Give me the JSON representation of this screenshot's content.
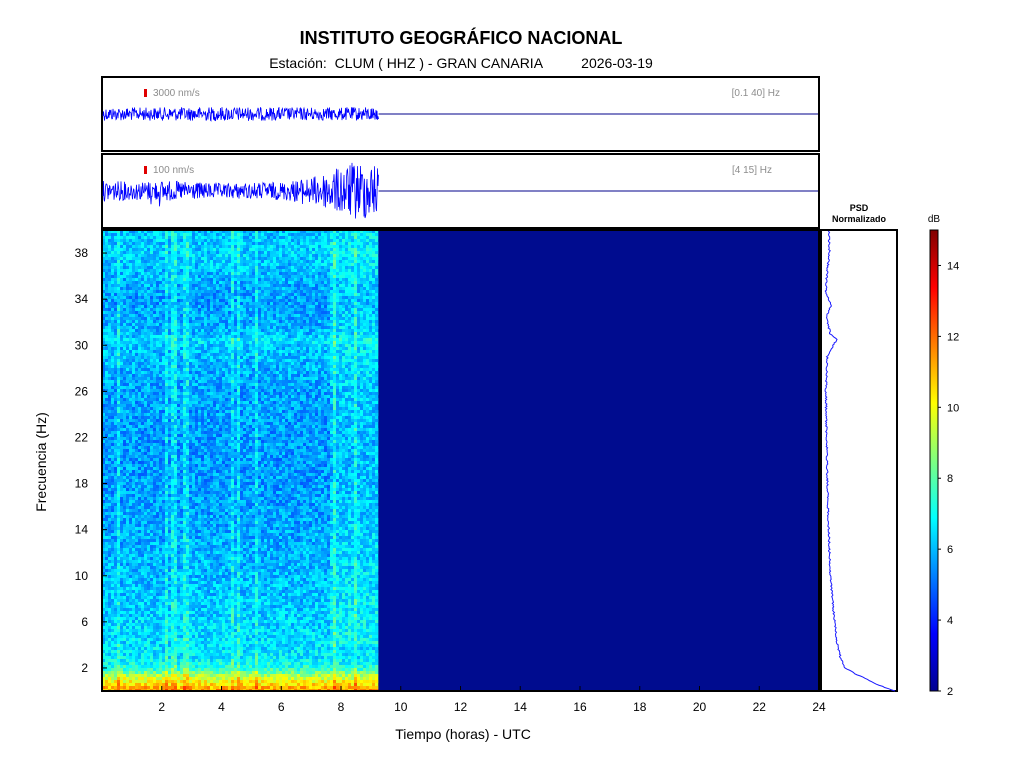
{
  "header": {
    "title": "INSTITUTO GEOGRÁFICO NACIONAL",
    "station_label": "Estación:",
    "station": "CLUM ( HHZ ) - GRAN CANARIA",
    "date": "2026-03-19"
  },
  "colors": {
    "trace": "#0000ff",
    "spectrogram_empty": "#000c8f",
    "scale_marker": "#e00000",
    "psd_line": "#1a1aff"
  },
  "chart_data": [
    {
      "type": "line",
      "name": "trace-broadband",
      "scale_label": "3000 nm/s",
      "filter_label": "[0.1 40] Hz",
      "x_range": [
        0,
        24
      ],
      "data_until_hour": 9.25,
      "amplitude_profile": [
        {
          "hour": 0.0,
          "amp": 0.55
        },
        {
          "hour": 2.0,
          "amp": 0.55
        },
        {
          "hour": 4.0,
          "amp": 0.6
        },
        {
          "hour": 6.0,
          "amp": 0.55
        },
        {
          "hour": 8.0,
          "amp": 0.55
        },
        {
          "hour": 9.25,
          "amp": 0.6
        }
      ]
    },
    {
      "type": "line",
      "name": "trace-filtered",
      "scale_label": "100 nm/s",
      "filter_label": "[4 15] Hz",
      "x_range": [
        0,
        24
      ],
      "data_until_hour": 9.25,
      "amplitude_profile": [
        {
          "hour": 0.0,
          "amp": 0.35
        },
        {
          "hour": 1.0,
          "amp": 0.3
        },
        {
          "hour": 2.0,
          "amp": 0.35
        },
        {
          "hour": 4.0,
          "amp": 0.25
        },
        {
          "hour": 6.0,
          "amp": 0.3
        },
        {
          "hour": 7.0,
          "amp": 0.45
        },
        {
          "hour": 8.0,
          "amp": 0.8
        },
        {
          "hour": 8.5,
          "amp": 1.0
        },
        {
          "hour": 9.25,
          "amp": 0.9
        }
      ],
      "spikes": [
        {
          "hour": 0.6,
          "amp": 0.55
        },
        {
          "hour": 1.6,
          "amp": 0.7
        },
        {
          "hour": 1.9,
          "amp": 0.6
        },
        {
          "hour": 3.1,
          "amp": 0.45
        },
        {
          "hour": 4.4,
          "amp": 0.5
        },
        {
          "hour": 5.4,
          "amp": 0.45
        },
        {
          "hour": 6.7,
          "amp": 0.5
        },
        {
          "hour": 8.1,
          "amp": 0.9
        }
      ]
    },
    {
      "type": "heatmap",
      "name": "spectrogram",
      "xlabel": "Tiempo (horas) - UTC",
      "ylabel": "Frecuencia  (Hz)",
      "xlim": [
        0,
        24
      ],
      "ylim": [
        0,
        40
      ],
      "xticks": [
        2,
        4,
        6,
        8,
        10,
        12,
        14,
        16,
        18,
        20,
        22,
        24
      ],
      "yticks": [
        2,
        6,
        10,
        14,
        18,
        22,
        26,
        30,
        34,
        38
      ],
      "data_until_hour": 9.25,
      "colorbar": {
        "label": "dB",
        "min": 2,
        "max": 15,
        "ticks": [
          2,
          4,
          6,
          8,
          10,
          12,
          14
        ],
        "colormap": "jet"
      },
      "level_profile_by_frequency": [
        {
          "hz": 0.0,
          "db": 11.5
        },
        {
          "hz": 0.5,
          "db": 11.0
        },
        {
          "hz": 1.0,
          "db": 10.0
        },
        {
          "hz": 1.5,
          "db": 9.0
        },
        {
          "hz": 2.0,
          "db": 7.5
        },
        {
          "hz": 3.0,
          "db": 6.6
        },
        {
          "hz": 6.0,
          "db": 6.3
        },
        {
          "hz": 10.0,
          "db": 6.0
        },
        {
          "hz": 14.0,
          "db": 5.8
        },
        {
          "hz": 18.0,
          "db": 5.6
        },
        {
          "hz": 22.0,
          "db": 5.6
        },
        {
          "hz": 26.0,
          "db": 5.7
        },
        {
          "hz": 30.0,
          "db": 6.1
        },
        {
          "hz": 30.5,
          "db": 6.6
        },
        {
          "hz": 31.0,
          "db": 6.0
        },
        {
          "hz": 34.0,
          "db": 5.6
        },
        {
          "hz": 38.0,
          "db": 6.3
        },
        {
          "hz": 40.0,
          "db": 6.1
        }
      ]
    },
    {
      "type": "line",
      "name": "psd-normalizado",
      "title": "PSD\nNormalizado",
      "ylim": [
        0,
        40
      ],
      "x_range": [
        0,
        1
      ],
      "points": [
        {
          "hz": 0.0,
          "v": 1.0
        },
        {
          "hz": 0.5,
          "v": 0.78
        },
        {
          "hz": 1.0,
          "v": 0.62
        },
        {
          "hz": 1.5,
          "v": 0.45
        },
        {
          "hz": 2.0,
          "v": 0.3
        },
        {
          "hz": 3.0,
          "v": 0.24
        },
        {
          "hz": 4.0,
          "v": 0.2
        },
        {
          "hz": 6.0,
          "v": 0.16
        },
        {
          "hz": 8.0,
          "v": 0.13
        },
        {
          "hz": 10.0,
          "v": 0.1
        },
        {
          "hz": 14.0,
          "v": 0.08
        },
        {
          "hz": 18.0,
          "v": 0.06
        },
        {
          "hz": 22.0,
          "v": 0.05
        },
        {
          "hz": 26.0,
          "v": 0.04
        },
        {
          "hz": 29.0,
          "v": 0.06
        },
        {
          "hz": 30.0,
          "v": 0.14
        },
        {
          "hz": 30.5,
          "v": 0.2
        },
        {
          "hz": 31.0,
          "v": 0.1
        },
        {
          "hz": 32.5,
          "v": 0.05
        },
        {
          "hz": 33.5,
          "v": 0.12
        },
        {
          "hz": 34.5,
          "v": 0.04
        },
        {
          "hz": 36.0,
          "v": 0.05
        },
        {
          "hz": 38.0,
          "v": 0.09
        },
        {
          "hz": 40.0,
          "v": 0.08
        }
      ]
    }
  ]
}
